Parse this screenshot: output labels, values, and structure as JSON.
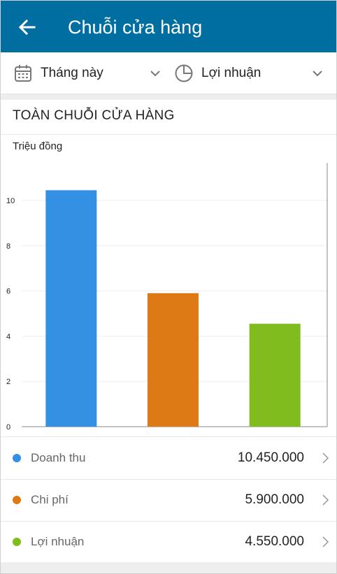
{
  "header": {
    "title": "Chuỗi cửa hàng",
    "back_icon": "arrow-left-icon"
  },
  "filters": {
    "period": {
      "label": "Tháng này",
      "icon": "calendar-icon"
    },
    "metric": {
      "label": "Lợi nhuận",
      "icon": "pie-chart-icon"
    }
  },
  "section": {
    "title": "TOÀN CHUỖI CỬA HÀNG",
    "unit": "Triệu đồng"
  },
  "colors": {
    "header_bg": "#006ea0",
    "revenue": "#3490e2",
    "cost": "#dd7a16",
    "profit": "#80bc1e"
  },
  "chart_data": {
    "type": "bar",
    "categories": [
      "Doanh thu",
      "Chi phí",
      "Lợi nhuận"
    ],
    "values": [
      10.45,
      5.9,
      4.55
    ],
    "colors": [
      "#3490e2",
      "#dd7a16",
      "#80bc1e"
    ],
    "ylim": [
      0,
      11.5
    ],
    "yticks": [
      "0",
      "2",
      "4",
      "6",
      "8",
      "10"
    ],
    "ylabel": "Triệu đồng",
    "grid": true
  },
  "legend": [
    {
      "label": "Doanh thu",
      "value": "10.450.000",
      "color": "#3490e2"
    },
    {
      "label": "Chi phí",
      "value": "5.900.000",
      "color": "#dd7a16"
    },
    {
      "label": "Lợi nhuận",
      "value": "4.550.000",
      "color": "#80bc1e"
    }
  ]
}
